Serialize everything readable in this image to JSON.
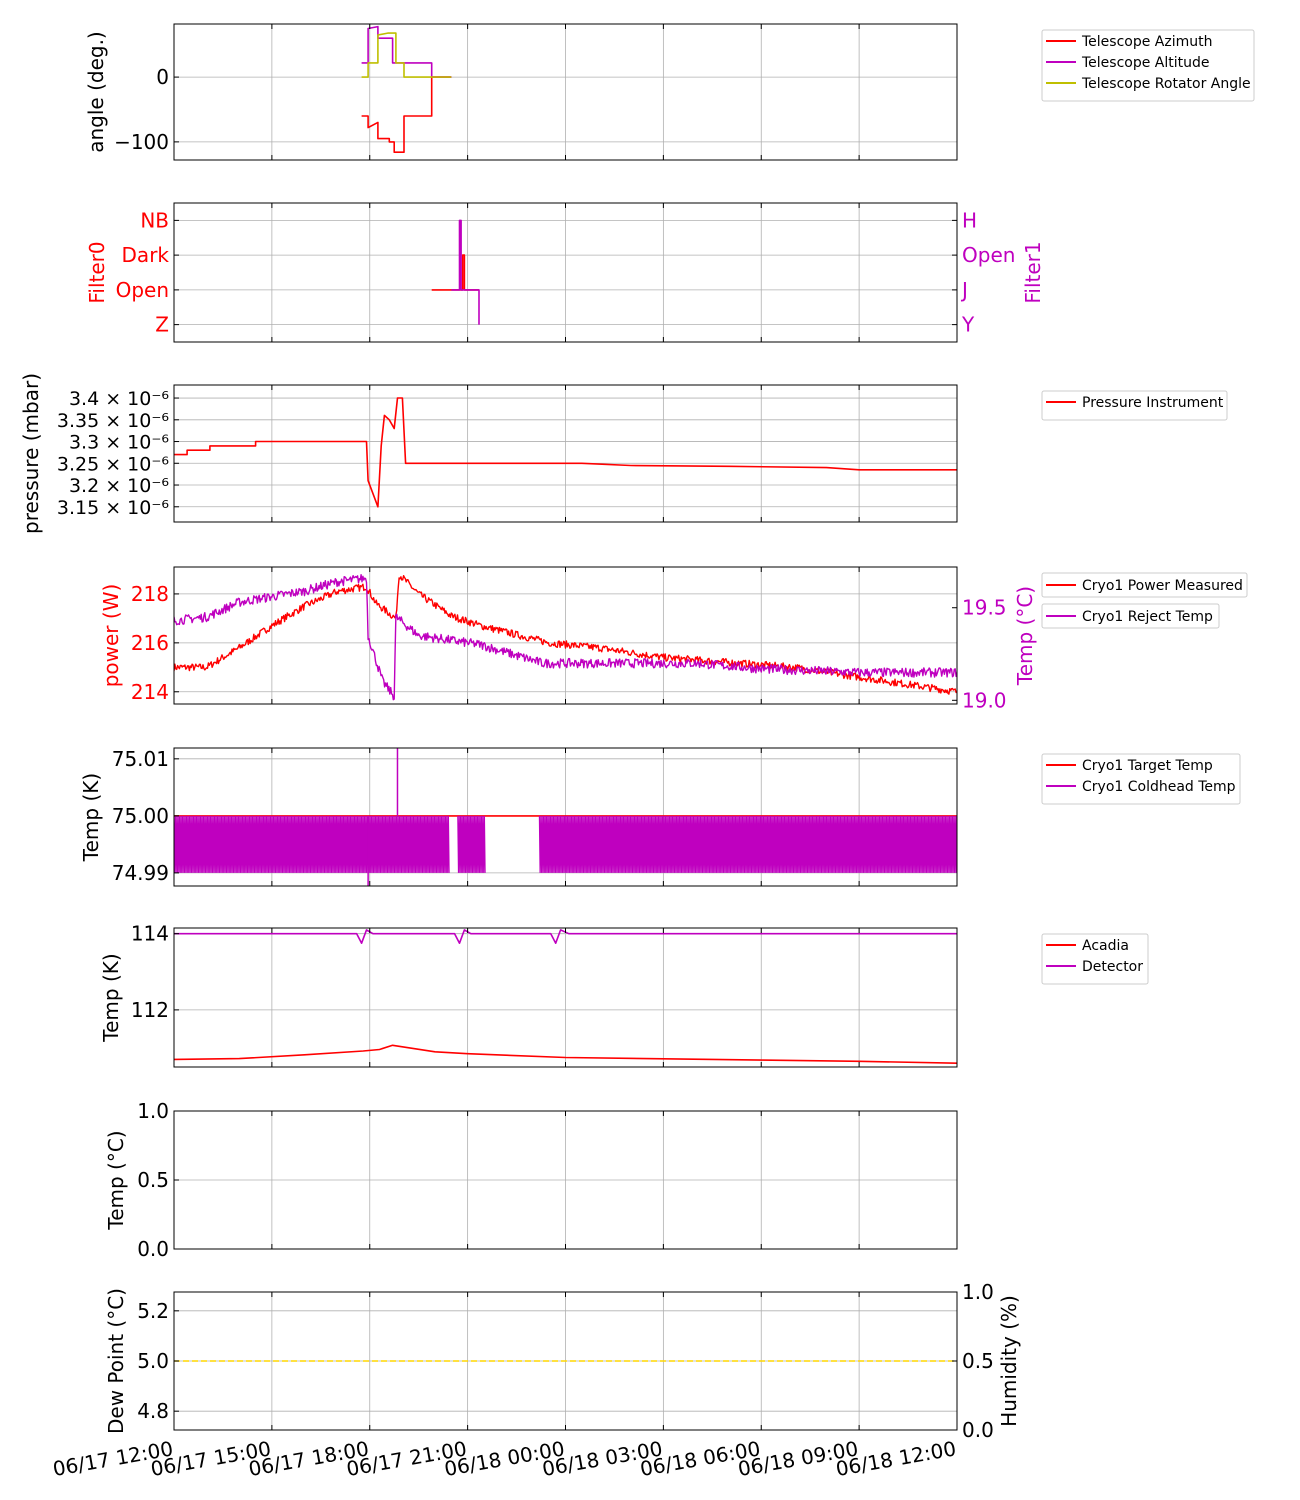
{
  "colors": {
    "red": "#ff0000",
    "magenta": "#bf00bf",
    "olive": "#bfbf00",
    "yellow": "#ffd700",
    "grid": "#b0b0b0"
  },
  "time_ticks": [
    "06/17 12:00",
    "06/17 15:00",
    "06/17 18:00",
    "06/17 21:00",
    "06/18 00:00",
    "06/18 03:00",
    "06/18 06:00",
    "06/18 09:00",
    "06/18 12:00"
  ],
  "chart_data": [
    {
      "id": "telescope",
      "type": "line",
      "ylabel": "angle (deg.)",
      "ylim": [
        -128,
        82
      ],
      "yticks": [
        {
          "v": 0,
          "label": "0"
        },
        {
          "v": -100,
          "label": "−100"
        }
      ],
      "legend": "right",
      "series": [
        {
          "name": "Telescope Azimuth",
          "color": "red",
          "points": [
            [
              17.75,
              -60
            ],
            [
              17.95,
              -60
            ],
            [
              17.95,
              -78
            ],
            [
              18.25,
              -70
            ],
            [
              18.25,
              -95
            ],
            [
              18.6,
              -95
            ],
            [
              18.6,
              -100
            ],
            [
              18.75,
              -100
            ],
            [
              18.75,
              -116
            ],
            [
              19.05,
              -116
            ],
            [
              19.05,
              -60
            ],
            [
              19.9,
              -60
            ],
            [
              19.9,
              0
            ],
            [
              20.5,
              0
            ]
          ]
        },
        {
          "name": "Telescope Altitude",
          "color": "magenta",
          "points": [
            [
              17.75,
              22
            ],
            [
              17.95,
              22
            ],
            [
              17.95,
              75
            ],
            [
              18.25,
              78
            ],
            [
              18.25,
              60
            ],
            [
              18.7,
              60
            ],
            [
              18.7,
              22
            ],
            [
              19.9,
              22
            ],
            [
              19.9,
              0
            ],
            [
              20.5,
              0
            ]
          ]
        },
        {
          "name": "Telescope Rotator Angle",
          "color": "olive",
          "points": [
            [
              17.75,
              0
            ],
            [
              17.95,
              0
            ],
            [
              17.95,
              22
            ],
            [
              18.25,
              22
            ],
            [
              18.25,
              65
            ],
            [
              18.55,
              68
            ],
            [
              18.8,
              68
            ],
            [
              18.8,
              22
            ],
            [
              19.05,
              22
            ],
            [
              19.05,
              0
            ],
            [
              20.5,
              0
            ]
          ]
        }
      ]
    },
    {
      "id": "filters",
      "type": "line",
      "ylabel": "Filter0",
      "ylabel_right": "Filter1",
      "ylim": [
        -0.5,
        3.5
      ],
      "yticks": [
        {
          "v": 3,
          "label": "NB"
        },
        {
          "v": 2,
          "label": "Dark"
        },
        {
          "v": 1,
          "label": "Open"
        },
        {
          "v": 0,
          "label": "Z"
        }
      ],
      "yticks_right": [
        {
          "v": 3,
          "label": "H"
        },
        {
          "v": 2,
          "label": "Open"
        },
        {
          "v": 1,
          "label": "J"
        },
        {
          "v": 0,
          "label": "Y"
        }
      ],
      "series": [
        {
          "color": "red",
          "points": [
            [
              19.9,
              1
            ],
            [
              20.85,
              1
            ],
            [
              20.85,
              2
            ],
            [
              20.9,
              2
            ],
            [
              20.9,
              1
            ],
            [
              21.35,
              1
            ]
          ]
        },
        {
          "color": "magenta",
          "points": [
            [
              20.5,
              1
            ],
            [
              20.75,
              1
            ],
            [
              20.75,
              3
            ],
            [
              20.8,
              3
            ],
            [
              20.8,
              1
            ],
            [
              21.35,
              1
            ],
            [
              21.35,
              0
            ]
          ]
        }
      ]
    },
    {
      "id": "pressure",
      "type": "line",
      "ylabel": "pressure (mbar)",
      "ylim": [
        3.115,
        3.43
      ],
      "yticks": [
        {
          "v": 3.4,
          "label": "3.4 × 10⁻⁶"
        },
        {
          "v": 3.35,
          "label": "3.35 × 10⁻⁶"
        },
        {
          "v": 3.3,
          "label": "3.3 × 10⁻⁶"
        },
        {
          "v": 3.25,
          "label": "3.25 × 10⁻⁶"
        },
        {
          "v": 3.2,
          "label": "3.2 × 10⁻⁶"
        },
        {
          "v": 3.15,
          "label": "3.15 × 10⁻⁶"
        }
      ],
      "legend": "right",
      "series": [
        {
          "name": "Pressure Instrument",
          "color": "red",
          "points": [
            [
              12,
              3.27
            ],
            [
              12.4,
              3.27
            ],
            [
              12.4,
              3.28
            ],
            [
              13.1,
              3.28
            ],
            [
              13.1,
              3.29
            ],
            [
              14.5,
              3.29
            ],
            [
              14.5,
              3.3
            ],
            [
              17.9,
              3.3
            ],
            [
              17.95,
              3.21
            ],
            [
              18.1,
              3.18
            ],
            [
              18.25,
              3.15
            ],
            [
              18.35,
              3.29
            ],
            [
              18.45,
              3.36
            ],
            [
              18.6,
              3.35
            ],
            [
              18.75,
              3.33
            ],
            [
              18.85,
              3.4
            ],
            [
              19.0,
              3.4
            ],
            [
              19.1,
              3.25
            ],
            [
              22.0,
              3.25
            ],
            [
              24.5,
              3.25
            ],
            [
              26,
              3.245
            ],
            [
              29,
              3.243
            ],
            [
              32,
              3.24
            ],
            [
              33,
              3.235
            ],
            [
              36,
              3.235
            ]
          ]
        }
      ]
    },
    {
      "id": "cryo-power",
      "type": "line",
      "ylabel": "power (W)",
      "ylabel_right": "Temp (°C)",
      "ylim": [
        213.5,
        219.1
      ],
      "yticks": [
        {
          "v": 218,
          "label": "218"
        },
        {
          "v": 216,
          "label": "216"
        },
        {
          "v": 214,
          "label": "214"
        }
      ],
      "ylim_right": [
        18.98,
        19.72
      ],
      "yticks_right": [
        {
          "v": 19.5,
          "label": "19.5"
        },
        {
          "v": 19.0,
          "label": "19.0"
        }
      ],
      "legend": "right",
      "series": [
        {
          "name": "Cryo1 Power Measured",
          "color": "red",
          "axis": "left",
          "noise": 0.15,
          "points": [
            [
              12,
              215
            ],
            [
              13,
              215
            ],
            [
              14,
              215.8
            ],
            [
              15,
              216.7
            ],
            [
              16,
              217.5
            ],
            [
              17,
              218.1
            ],
            [
              17.9,
              218.3
            ],
            [
              18.2,
              217.6
            ],
            [
              18.5,
              217.3
            ],
            [
              18.8,
              217.0
            ],
            [
              18.9,
              218.8
            ],
            [
              19.5,
              218.0
            ],
            [
              20.5,
              217.1
            ],
            [
              21.4,
              216.7
            ],
            [
              23.5,
              216.0
            ],
            [
              25,
              215.8
            ],
            [
              27,
              215.4
            ],
            [
              29,
              215.2
            ],
            [
              31,
              215.0
            ],
            [
              33,
              214.6
            ],
            [
              36,
              214.0
            ]
          ]
        },
        {
          "name": "Cryo1 Reject Temp",
          "color": "magenta",
          "axis": "right",
          "noise": 0.025,
          "points": [
            [
              12,
              19.43
            ],
            [
              13,
              19.45
            ],
            [
              14,
              19.53
            ],
            [
              15,
              19.56
            ],
            [
              16,
              19.59
            ],
            [
              17,
              19.64
            ],
            [
              17.9,
              19.66
            ],
            [
              17.95,
              19.35
            ],
            [
              18.4,
              19.1
            ],
            [
              18.75,
              19.02
            ],
            [
              18.8,
              19.45
            ],
            [
              19.5,
              19.35
            ],
            [
              21.4,
              19.3
            ],
            [
              23.3,
              19.2
            ],
            [
              25,
              19.2
            ],
            [
              28,
              19.2
            ],
            [
              30,
              19.17
            ],
            [
              33,
              19.15
            ],
            [
              36,
              19.15
            ]
          ]
        }
      ]
    },
    {
      "id": "cryo-temps",
      "type": "line",
      "ylabel": "Temp (K)",
      "ylim": [
        74.9877,
        75.0119
      ],
      "yticks": [
        {
          "v": 75.01,
          "label": "75.01"
        },
        {
          "v": 75.0,
          "label": "75.00"
        },
        {
          "v": 74.99,
          "label": "74.99"
        }
      ],
      "legend": "right",
      "series": [
        {
          "name": "Cryo1 Target Temp",
          "color": "red",
          "points": [
            [
              12,
              75.0
            ],
            [
              36,
              75.0
            ]
          ]
        },
        {
          "name": "Cryo1 Coldhead Temp",
          "color": "magenta",
          "band": [
            74.99,
            75.0
          ],
          "segments": [
            [
              12,
              20.45
            ],
            [
              20.7,
              21.55
            ],
            [
              23.2,
              36
            ]
          ],
          "spikes": [
            [
              17.95,
              74.9877
            ],
            [
              18.85,
              75.0119
            ]
          ]
        }
      ]
    },
    {
      "id": "acadia-detector",
      "type": "line",
      "ylabel": "Temp (K)",
      "ylim": [
        110.5,
        114.15
      ],
      "yticks": [
        {
          "v": 114,
          "label": "114"
        },
        {
          "v": 112,
          "label": "112"
        }
      ],
      "legend": "right",
      "series": [
        {
          "name": "Acadia",
          "color": "red",
          "points": [
            [
              12,
              110.7
            ],
            [
              14,
              110.72
            ],
            [
              16,
              110.82
            ],
            [
              17.8,
              110.92
            ],
            [
              18.3,
              110.96
            ],
            [
              18.7,
              111.07
            ],
            [
              20,
              110.9
            ],
            [
              21,
              110.85
            ],
            [
              24,
              110.75
            ],
            [
              30,
              110.68
            ],
            [
              33,
              110.65
            ],
            [
              36,
              110.6
            ]
          ]
        },
        {
          "name": "Detector",
          "color": "magenta",
          "points": [
            [
              12,
              114
            ],
            [
              17.6,
              114
            ],
            [
              17.75,
              113.75
            ],
            [
              17.9,
              114.1
            ],
            [
              18.1,
              114
            ],
            [
              20.6,
              114
            ],
            [
              20.75,
              113.75
            ],
            [
              20.9,
              114.1
            ],
            [
              21.1,
              114
            ],
            [
              23.55,
              114
            ],
            [
              23.7,
              113.75
            ],
            [
              23.85,
              114.1
            ],
            [
              24.1,
              114
            ],
            [
              36,
              114
            ]
          ]
        }
      ]
    },
    {
      "id": "empty-temp",
      "type": "line",
      "ylabel": "Temp (°C)",
      "ylim": [
        0,
        1
      ],
      "yticks": [
        {
          "v": 1.0,
          "label": "1.0"
        },
        {
          "v": 0.5,
          "label": "0.5"
        },
        {
          "v": 0.0,
          "label": "0.0"
        }
      ],
      "series": []
    },
    {
      "id": "dewpoint",
      "type": "line",
      "ylabel": "Dew Point (°C)",
      "ylabel_right": "Humidity (%)",
      "ylim": [
        4.725,
        5.275
      ],
      "yticks": [
        {
          "v": 5.2,
          "label": "5.2"
        },
        {
          "v": 5.0,
          "label": "5.0"
        },
        {
          "v": 4.8,
          "label": "4.8"
        }
      ],
      "ylim_right": [
        0,
        1
      ],
      "yticks_right": [
        {
          "v": 1.0,
          "label": "1.0"
        },
        {
          "v": 0.5,
          "label": "0.5"
        },
        {
          "v": 0.0,
          "label": "0.0"
        }
      ],
      "series": [
        {
          "color": "yellow",
          "axis": "left",
          "dashed": true,
          "points": [
            [
              12,
              5.0
            ],
            [
              36,
              5.0
            ]
          ]
        }
      ]
    }
  ]
}
